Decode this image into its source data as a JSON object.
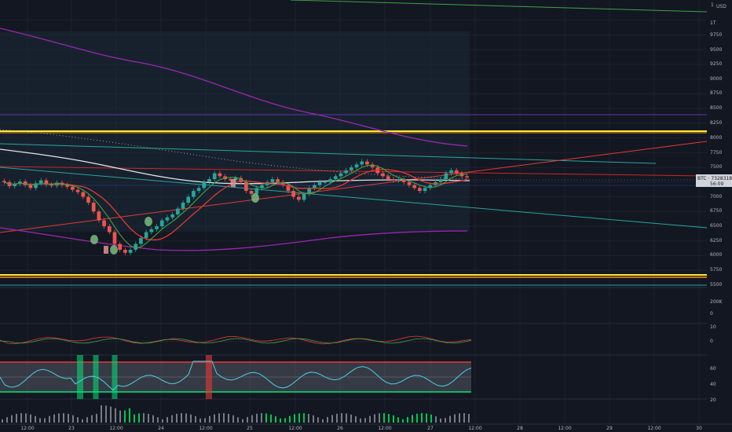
{
  "chart_data": [
    {
      "type": "candlestick",
      "symbol": "BTC",
      "price_tag": "7328318",
      "countdown": "56:09",
      "currency": "USD",
      "unit_header": "1",
      "y_ticks": [
        "1T",
        "9750",
        "9500",
        "9250",
        "9000",
        "8750",
        "8500",
        "8250",
        "8000",
        "7750",
        "7500",
        "7250",
        "7000",
        "6750",
        "6500",
        "6250",
        "6000",
        "5750",
        "5500"
      ],
      "ylim": [
        5500,
        10250
      ],
      "x_ticks": [
        "12:00",
        "23",
        "12:00",
        "24",
        "12:00",
        "25",
        "12:00",
        "26",
        "12:00",
        "27",
        "12:00",
        "28",
        "12:00",
        "29",
        "12:00",
        "30"
      ],
      "close_series": [
        7250,
        7180,
        7220,
        7260,
        7200,
        7150,
        7230,
        7280,
        7210,
        7190,
        7240,
        7200,
        7170,
        7120,
        7080,
        7000,
        6900,
        6750,
        6600,
        6500,
        6400,
        6200,
        6100,
        6050,
        6100,
        6200,
        6300,
        6400,
        6450,
        6500,
        6600,
        6650,
        6700,
        6800,
        6900,
        7000,
        7100,
        7150,
        7250,
        7300,
        7400,
        7350,
        7300,
        7280,
        7320,
        7250,
        7100,
        7050,
        7150,
        7200,
        7250,
        7300,
        7250,
        7200,
        7100,
        7000,
        6950,
        7050,
        7150,
        7200,
        7250,
        7250,
        7300,
        7350,
        7400,
        7450,
        7500,
        7550,
        7600,
        7550,
        7500,
        7400,
        7350,
        7300,
        7280,
        7300,
        7250,
        7200,
        7150,
        7100,
        7150,
        7200,
        7250,
        7300,
        7400,
        7450,
        7400,
        7350,
        7330
      ]
    },
    {
      "type": "histogram",
      "y_ticks": [
        "200K",
        "0"
      ]
    },
    {
      "type": "line",
      "y_ticks": [
        "10",
        "0"
      ]
    },
    {
      "type": "line",
      "y_ticks": [
        "60",
        "40",
        "20"
      ],
      "upper_band": 70,
      "lower_band": 30
    }
  ],
  "colors": {
    "background": "#131722",
    "up": "#26a69a",
    "down": "#ef5350",
    "ma_white": "#e0e3eb",
    "ma_red": "#e53935",
    "ma_green": "#43a047",
    "band_purple": "#9c27b0",
    "level_yellow": "#ffeb3b",
    "level_orange": "#ff9800",
    "osc_teal": "#4dd0e1",
    "signal_green": "#00e676"
  }
}
